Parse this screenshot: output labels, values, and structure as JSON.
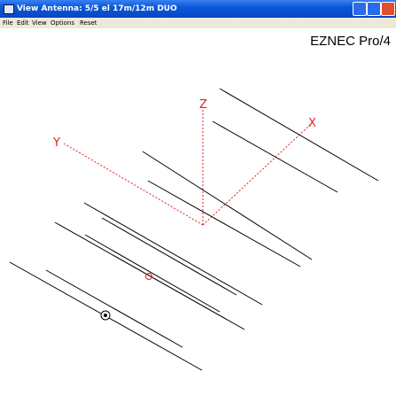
{
  "window": {
    "title": "View Antenna: 5/5 el 17m/12m DUO",
    "menu": [
      "File",
      "Edit",
      "View",
      "Options",
      "Reset"
    ],
    "brand": "EZNEC Pro/4",
    "axes": {
      "x": "X",
      "y": "Y",
      "z": "Z"
    }
  }
}
